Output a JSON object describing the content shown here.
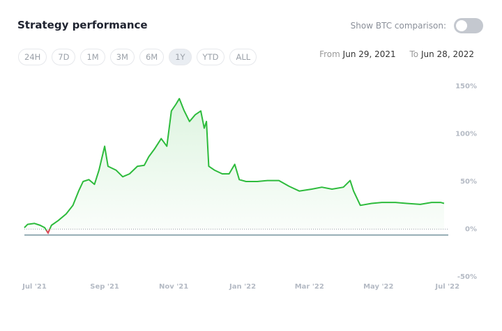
{
  "header": {
    "title": "Strategy performance",
    "toggle_label": "Show BTC comparison:",
    "toggle_on": false
  },
  "range_buttons": [
    {
      "label": "24H",
      "selected": false
    },
    {
      "label": "7D",
      "selected": false
    },
    {
      "label": "1M",
      "selected": false
    },
    {
      "label": "3M",
      "selected": false
    },
    {
      "label": "6M",
      "selected": false
    },
    {
      "label": "1Y",
      "selected": true
    },
    {
      "label": "YTD",
      "selected": false
    },
    {
      "label": "ALL",
      "selected": false
    }
  ],
  "date_range": {
    "from_label": "From",
    "from": "Jun 29, 2021",
    "to_label": "To",
    "to": "Jun 28, 2022"
  },
  "chart_data": {
    "type": "line",
    "x": [
      "2021-06-22",
      "2021-06-25",
      "2021-07-01",
      "2021-07-06",
      "2021-07-10",
      "2021-07-13",
      "2021-07-16",
      "2021-07-22",
      "2021-07-29",
      "2021-08-04",
      "2021-08-09",
      "2021-08-13",
      "2021-08-18",
      "2021-08-23",
      "2021-08-27",
      "2021-09-01",
      "2021-09-04",
      "2021-09-11",
      "2021-09-17",
      "2021-09-23",
      "2021-09-30",
      "2021-10-06",
      "2021-10-10",
      "2021-10-15",
      "2021-10-21",
      "2021-10-26",
      "2021-10-30",
      "2021-11-03",
      "2021-11-06",
      "2021-11-10",
      "2021-11-15",
      "2021-11-20",
      "2021-11-25",
      "2021-11-28",
      "2021-11-30",
      "2021-12-02",
      "2021-12-07",
      "2021-12-14",
      "2021-12-20",
      "2021-12-25",
      "2021-12-29",
      "2022-01-04",
      "2022-01-14",
      "2022-01-23",
      "2022-02-02",
      "2022-02-11",
      "2022-02-20",
      "2022-03-03",
      "2022-03-12",
      "2022-03-21",
      "2022-03-31",
      "2022-04-06",
      "2022-04-09",
      "2022-04-15",
      "2022-04-25",
      "2022-05-04",
      "2022-05-16",
      "2022-05-26",
      "2022-06-07",
      "2022-06-17",
      "2022-06-25",
      "2022-06-28"
    ],
    "series": [
      {
        "name": "Strategy",
        "color": "#2dbb3c",
        "negative_color": "#e0455a",
        "values": [
          1.5,
          5,
          6,
          4,
          1.5,
          -4,
          4,
          9,
          16,
          25,
          40,
          50,
          52,
          47,
          62,
          87,
          66,
          62,
          55,
          58,
          66,
          67,
          76,
          84,
          95,
          87,
          124,
          131,
          137,
          125,
          113,
          120,
          124,
          106,
          113,
          66,
          62,
          58,
          58,
          68,
          52,
          50,
          50,
          51,
          51,
          45,
          40,
          42,
          44,
          42,
          44,
          51,
          40,
          25,
          27,
          28,
          28,
          27,
          26,
          28,
          28,
          27
        ]
      }
    ],
    "xlim": [
      "2021-06-19",
      "2022-07-03"
    ],
    "xticks": [
      {
        "value": "2021-07-01",
        "label": "Jul '21"
      },
      {
        "value": "2021-09-01",
        "label": "Sep '21"
      },
      {
        "value": "2021-11-01",
        "label": "Nov '21"
      },
      {
        "value": "2022-01-01",
        "label": "Jan '22"
      },
      {
        "value": "2022-03-01",
        "label": "Mar '22"
      },
      {
        "value": "2022-05-01",
        "label": "May '22"
      },
      {
        "value": "2022-07-01",
        "label": "Jul '22"
      }
    ],
    "ylim": [
      -50,
      150
    ],
    "yticks": [
      {
        "value": -50,
        "label": "-50%"
      },
      {
        "value": 0,
        "label": "0%"
      },
      {
        "value": 50,
        "label": "50%"
      },
      {
        "value": 100,
        "label": "100%"
      },
      {
        "value": 150,
        "label": "150%"
      }
    ],
    "baseline": 0,
    "grid": false,
    "area_fill": true
  }
}
